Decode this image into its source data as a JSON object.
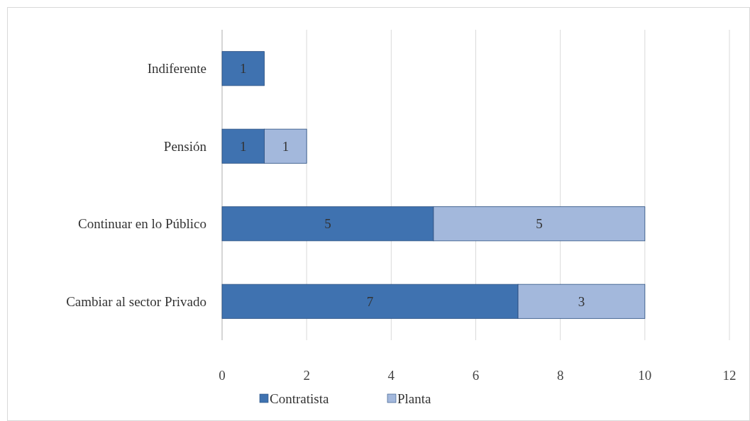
{
  "chart_data": {
    "type": "bar",
    "orientation": "horizontal",
    "stacked": true,
    "categories": [
      "Indiferente",
      "Pensión",
      "Continuar en lo Público",
      "Cambiar al sector Privado"
    ],
    "series": [
      {
        "name": "Contratista",
        "color": "#3f72b0",
        "values": [
          1,
          1,
          5,
          7
        ]
      },
      {
        "name": "Planta",
        "color": "#a3b8dc",
        "values": [
          null,
          1,
          5,
          3
        ]
      }
    ],
    "xlim": [
      0,
      12
    ],
    "xticks": [
      0,
      2,
      4,
      6,
      8,
      10,
      12
    ],
    "grid": "x",
    "legend": "bottom",
    "data_labels": true
  }
}
